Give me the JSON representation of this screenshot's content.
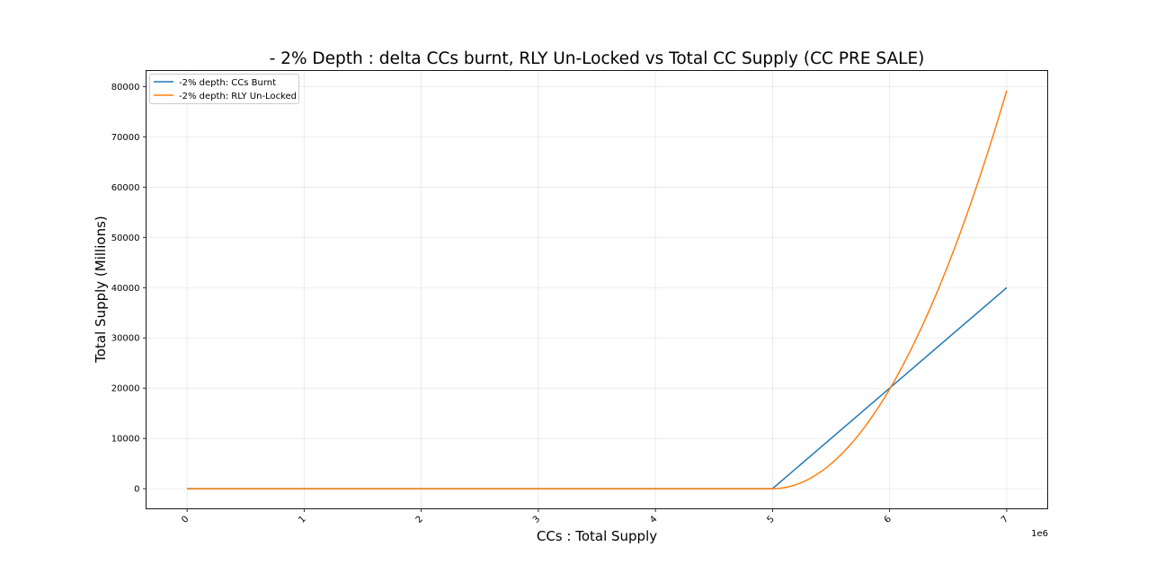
{
  "chart_data": {
    "type": "line",
    "title": "- 2% Depth : delta CCs burnt, RLY Un-Locked vs Total CC Supply (CC PRE SALE)",
    "xlabel": "CCs : Total Supply",
    "ylabel": "Total Supply (Millions)",
    "x_offset_label": "1e6",
    "xlim": [
      -0.35,
      7.35
    ],
    "ylim": [
      -4000,
      83200
    ],
    "x_ticks": [
      0,
      1,
      2,
      3,
      4,
      5,
      6,
      7
    ],
    "x_tick_labels": [
      "0",
      "1",
      "2",
      "3",
      "4",
      "5",
      "6",
      "7"
    ],
    "y_ticks": [
      0,
      10000,
      20000,
      30000,
      40000,
      50000,
      60000,
      70000,
      80000
    ],
    "y_tick_labels": [
      "0",
      "10000",
      "20000",
      "30000",
      "40000",
      "50000",
      "60000",
      "70000",
      "80000"
    ],
    "grid": true,
    "legend_position": "top-left",
    "series": [
      {
        "name": "-2% depth: CCs Burnt",
        "color": "#1f77b4",
        "x": [
          0,
          1,
          2,
          3,
          4,
          5,
          6,
          7
        ],
        "y": [
          0,
          0,
          0,
          0,
          0,
          0,
          20000,
          40000
        ]
      },
      {
        "name": "-2% depth: RLY Un-Locked",
        "color": "#ff7f0e",
        "x": [
          0,
          1,
          2,
          3,
          4,
          5,
          5.25,
          5.5,
          5.75,
          6,
          6.25,
          6.5,
          6.75,
          7
        ],
        "y": [
          0,
          0,
          0,
          0,
          0,
          0,
          1250,
          5000,
          11250,
          20000,
          31250,
          45000,
          61250,
          79200
        ]
      }
    ]
  }
}
